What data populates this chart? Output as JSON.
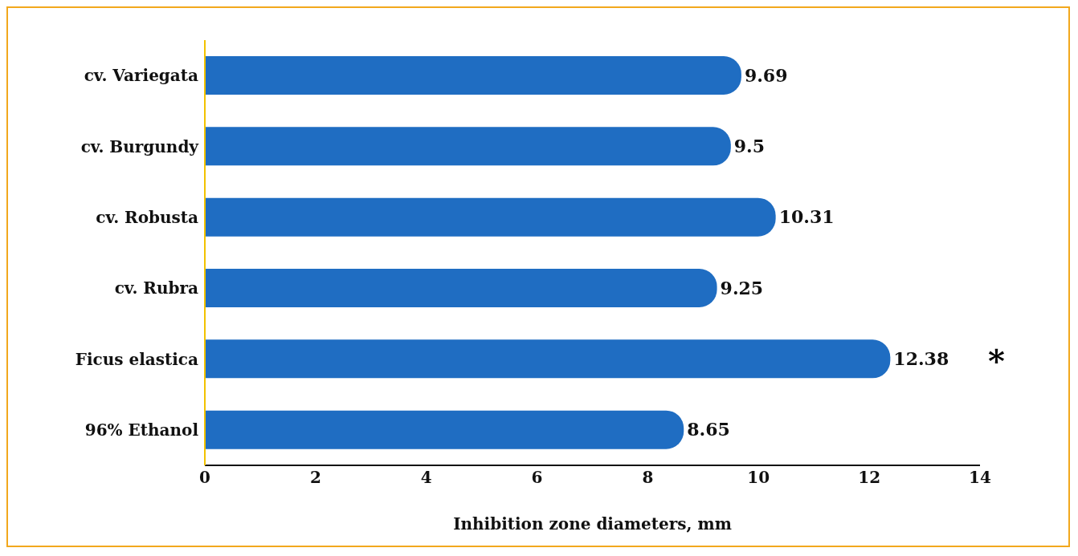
{
  "chart_data": {
    "type": "bar",
    "orientation": "horizontal",
    "categories": [
      "cv. Variegata",
      "cv. Burgundy",
      "cv. Robusta",
      "cv. Rubra",
      "Ficus elastica",
      "96% Ethanol"
    ],
    "values": [
      9.69,
      9.5,
      10.31,
      9.25,
      12.38,
      8.65
    ],
    "color": "#1f6dc2",
    "xlim": [
      0,
      14
    ],
    "xticks": [
      0,
      2,
      4,
      6,
      8,
      10,
      12,
      14
    ],
    "xlabel": "Inhibition zone diameters, mm",
    "data_labels": true,
    "grid": false,
    "legend": false,
    "annotations": [
      "*"
    ]
  }
}
